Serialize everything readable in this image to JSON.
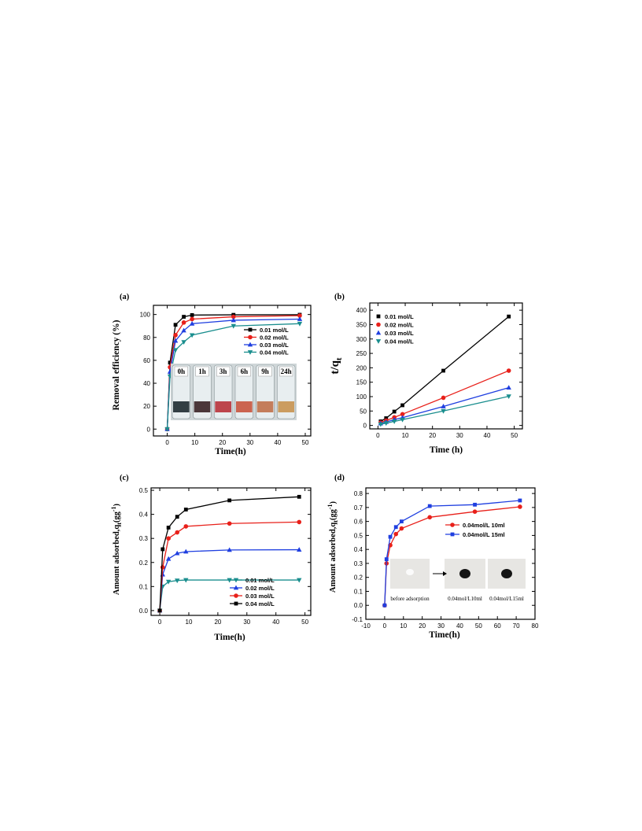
{
  "chart_data": [
    {
      "panel": "(a)",
      "type": "line",
      "xlabel": "Time(h)",
      "ylabel": "Removal efficiency (%)",
      "xlim": [
        -5,
        52
      ],
      "ylim": [
        -6,
        108
      ],
      "xticks": [
        0,
        10,
        20,
        30,
        40,
        50
      ],
      "yticks": [
        0,
        20,
        40,
        60,
        80,
        100
      ],
      "legend": "top-right",
      "series": [
        {
          "name": "0.01 mol/L",
          "color": "#000000",
          "marker": "square",
          "x": [
            0,
            1,
            3,
            6,
            9,
            24,
            48
          ],
          "y": [
            0,
            58,
            91,
            98,
            99.5,
            99.7,
            99.8
          ]
        },
        {
          "name": "0.02 mol/L",
          "color": "#e8201a",
          "marker": "circle",
          "x": [
            0,
            1,
            3,
            6,
            9,
            24,
            48
          ],
          "y": [
            0,
            54,
            82,
            93,
            96,
            98,
            99
          ]
        },
        {
          "name": "0.03 mol/L",
          "color": "#1f3fe0",
          "marker": "triangle-up",
          "x": [
            0,
            1,
            3,
            6,
            9,
            24,
            48
          ],
          "y": [
            0,
            50,
            77,
            86,
            92,
            95,
            96
          ]
        },
        {
          "name": "0.04 mol/L",
          "color": "#1a8e8e",
          "marker": "triangle-down",
          "x": [
            0,
            1,
            3,
            6,
            9,
            24,
            48
          ],
          "y": [
            0,
            46,
            69,
            76,
            82,
            90,
            92
          ]
        }
      ],
      "inset_vials": [
        "0h",
        "1h",
        "3h",
        "6h",
        "9h",
        "24h"
      ]
    },
    {
      "panel": "(b)",
      "type": "line",
      "xlabel": "Time (h)",
      "ylabel_main": "t/q",
      "ylabel_sub": "t",
      "xlim": [
        -3,
        53
      ],
      "ylim": [
        -12,
        425
      ],
      "xticks": [
        0,
        10,
        20,
        30,
        40,
        50
      ],
      "yticks": [
        0,
        50,
        100,
        150,
        200,
        250,
        300,
        350,
        400
      ],
      "legend": "top-left",
      "series": [
        {
          "name": "0.01 mol/L",
          "color": "#000000",
          "marker": "square",
          "x": [
            1,
            3,
            6,
            9,
            24,
            48
          ],
          "y": [
            14,
            25,
            48,
            70,
            190,
            378
          ]
        },
        {
          "name": "0.02 mol/L",
          "color": "#e8201a",
          "marker": "circle",
          "x": [
            1,
            3,
            6,
            9,
            24,
            48
          ],
          "y": [
            10,
            17,
            28,
            39,
            96,
            190
          ]
        },
        {
          "name": "0.03 mol/L",
          "color": "#1f3fe0",
          "marker": "triangle-up",
          "x": [
            1,
            3,
            6,
            9,
            24,
            48
          ],
          "y": [
            7,
            12,
            20,
            27,
            66,
            131
          ]
        },
        {
          "name": "0.04 mol/L",
          "color": "#1a8e8e",
          "marker": "triangle-down",
          "x": [
            1,
            3,
            6,
            9,
            24,
            48
          ],
          "y": [
            4,
            8,
            14,
            20,
            50,
            101
          ]
        }
      ]
    },
    {
      "panel": "(c)",
      "type": "line",
      "xlabel": "Time(h)",
      "ylabel": "Amount adsorbed,q",
      "ylabel_sub": "t",
      "ylabel_unit": "(gg",
      "ylabel_exp": "-1",
      "ylabel_close": ")",
      "xlim": [
        -3,
        52
      ],
      "ylim": [
        -0.02,
        0.51
      ],
      "xticks": [
        0,
        10,
        20,
        30,
        40,
        50
      ],
      "yticks": [
        0.0,
        0.1,
        0.2,
        0.3,
        0.4,
        0.5
      ],
      "legend": "bottom-right",
      "series": [
        {
          "name": "0.01 mol/L",
          "color": "#1a8e8e",
          "marker": "triangle-down",
          "x": [
            0,
            1,
            3,
            6,
            9,
            24,
            48
          ],
          "y": [
            0,
            0.1,
            0.12,
            0.125,
            0.127,
            0.127,
            0.127
          ]
        },
        {
          "name": "0.02 mol/L",
          "color": "#1f3fe0",
          "marker": "triangle-up",
          "x": [
            0,
            1,
            3,
            6,
            9,
            24,
            48
          ],
          "y": [
            0,
            0.15,
            0.215,
            0.238,
            0.245,
            0.252,
            0.253
          ]
        },
        {
          "name": "0.03 mol/L",
          "color": "#e8201a",
          "marker": "circle",
          "x": [
            0,
            1,
            3,
            6,
            9,
            24,
            48
          ],
          "y": [
            0,
            0.18,
            0.3,
            0.325,
            0.35,
            0.362,
            0.368
          ]
        },
        {
          "name": "0.04 mol/L",
          "color": "#000000",
          "marker": "square",
          "x": [
            0,
            1,
            3,
            6,
            9,
            24,
            48
          ],
          "y": [
            0,
            0.255,
            0.345,
            0.39,
            0.42,
            0.458,
            0.473
          ]
        }
      ]
    },
    {
      "panel": "(d)",
      "type": "line",
      "xlabel": "Time(h)",
      "ylabel": "Amount adsorbed,q",
      "ylabel_sub": "t",
      "ylabel_unit": "(gg",
      "ylabel_exp": "-1",
      "ylabel_close": ")",
      "xlim": [
        -10,
        80
      ],
      "ylim": [
        -0.1,
        0.84
      ],
      "xticks": [
        -10,
        0,
        10,
        20,
        30,
        40,
        50,
        60,
        70,
        80
      ],
      "yticks": [
        -0.1,
        0.0,
        0.1,
        0.2,
        0.3,
        0.4,
        0.5,
        0.6,
        0.7,
        0.8
      ],
      "legend": "middle-right",
      "series": [
        {
          "name": "0.04mol/L 10ml",
          "color": "#e8201a",
          "marker": "circle",
          "x": [
            0,
            1,
            3,
            6,
            9,
            24,
            48,
            72
          ],
          "y": [
            0,
            0.3,
            0.43,
            0.51,
            0.55,
            0.63,
            0.67,
            0.705
          ]
        },
        {
          "name": "0.04mol/L 15ml",
          "color": "#1f3fe0",
          "marker": "square",
          "x": [
            0,
            1,
            3,
            6,
            9,
            24,
            48,
            72
          ],
          "y": [
            0,
            0.33,
            0.49,
            0.56,
            0.6,
            0.71,
            0.72,
            0.75
          ]
        }
      ],
      "inset_photos": [
        "before adsorption",
        "0.04mol/L10ml",
        "0.04mol/L15ml"
      ]
    }
  ]
}
